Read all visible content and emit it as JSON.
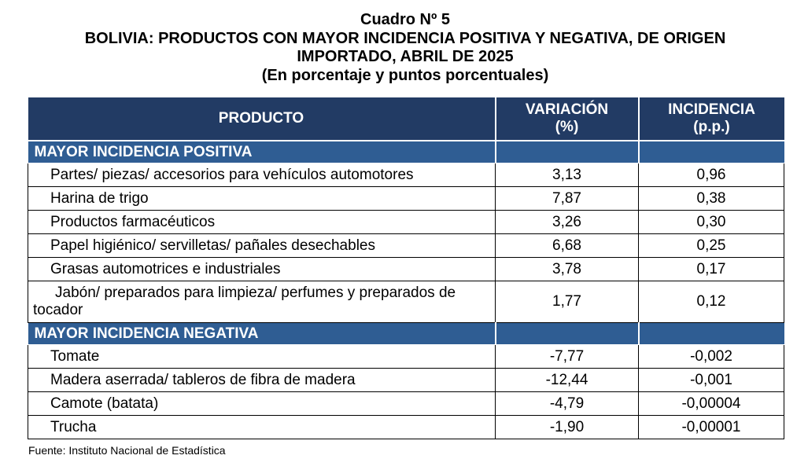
{
  "title": {
    "cuadro": "Cuadro Nº 5",
    "line1": "BOLIVIA: PRODUCTOS CON MAYOR INCIDENCIA POSITIVA Y NEGATIVA, DE ORIGEN",
    "line2": "IMPORTADO, ABRIL DE 2025",
    "subtitle": "(En porcentaje y puntos porcentuales)"
  },
  "table": {
    "headers": {
      "producto": "PRODUCTO",
      "variacion_line1": "VARIACIÓN",
      "variacion_line2": "(%)",
      "incidencia_line1": "INCIDENCIA",
      "incidencia_line2": "(p.p.)"
    },
    "positive": {
      "label": "MAYOR INCIDENCIA POSITIVA",
      "rows": [
        {
          "producto": "Partes/ piezas/ accesorios para vehículos automotores",
          "variacion": "3,13",
          "incidencia": "0,96"
        },
        {
          "producto": "Harina de trigo",
          "variacion": "7,87",
          "incidencia": "0,38"
        },
        {
          "producto": "Productos farmacéuticos",
          "variacion": "3,26",
          "incidencia": "0,30"
        },
        {
          "producto": "Papel higiénico/ servilletas/ pañales desechables",
          "variacion": "6,68",
          "incidencia": "0,25"
        },
        {
          "producto": "Grasas automotrices e industriales",
          "variacion": "3,78",
          "incidencia": "0,17"
        },
        {
          "producto": "Jabón/ preparados para limpieza/ perfumes y preparados de tocador",
          "variacion": "1,77",
          "incidencia": "0,12"
        }
      ]
    },
    "negative": {
      "label": "MAYOR INCIDENCIA NEGATIVA",
      "rows": [
        {
          "producto": "Tomate",
          "variacion": "-7,77",
          "incidencia": "-0,002"
        },
        {
          "producto": "Madera aserrada/ tableros de fibra de madera",
          "variacion": "-12,44",
          "incidencia": "-0,001"
        },
        {
          "producto": "Camote (batata)",
          "variacion": "-4,79",
          "incidencia": "-0,00004"
        },
        {
          "producto": "Trucha",
          "variacion": "-1,90",
          "incidencia": "-0,00001"
        }
      ]
    }
  },
  "source": "Fuente: Instituto Nacional de Estadística",
  "colors": {
    "header_bg": "#223b64",
    "section_bg": "#2f5d93",
    "header_text": "#ffffff"
  }
}
